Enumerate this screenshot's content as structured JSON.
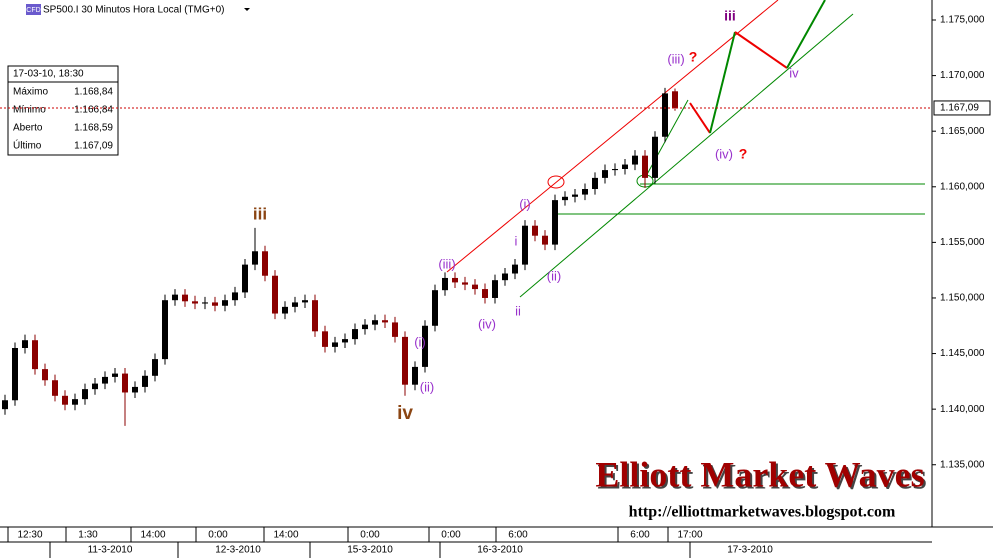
{
  "chart_data": {
    "type": "candlestick",
    "badge": "CFD",
    "title": "SP500.I 30 Minutos Hora Local (TMG+0)",
    "up_color": "#000000",
    "down_color": "#8b0000",
    "open": [
      1140.0,
      1140.8,
      1145.5,
      1146.2,
      1143.6,
      1142.6,
      1141.2,
      1140.4,
      1140.9,
      1141.8,
      1142.3,
      1142.9,
      1143.2,
      1141.5,
      1142.0,
      1143.0,
      1144.5,
      1149.8,
      1150.3,
      1149.7,
      1149.5,
      1149.6,
      1149.3,
      1149.8,
      1150.5,
      1153.0,
      1154.2,
      1152.0,
      1148.6,
      1149.2,
      1149.6,
      1149.8,
      1147.0,
      1145.6,
      1146.0,
      1146.3,
      1147.2,
      1147.6,
      1148.0,
      1147.8,
      1146.5,
      1142.2,
      1143.8,
      1147.5,
      1150.7,
      1151.8,
      1151.4,
      1151.2,
      1150.8,
      1150.0,
      1151.6,
      1152.2,
      1153.0,
      1156.5,
      1155.6,
      1154.8,
      1158.8,
      1159.1,
      1159.3,
      1159.8,
      1160.8,
      1161.5,
      1161.6,
      1162.0,
      1162.8,
      1160.8,
      1164.5,
      1168.59
    ],
    "high": [
      1141.3,
      1146.0,
      1146.7,
      1146.7,
      1144.1,
      1143.1,
      1141.7,
      1141.4,
      1142.3,
      1142.8,
      1143.4,
      1143.7,
      1143.7,
      1142.5,
      1143.5,
      1145.0,
      1150.3,
      1150.8,
      1150.8,
      1150.2,
      1150.1,
      1150.1,
      1150.3,
      1151.0,
      1153.5,
      1156.3,
      1154.7,
      1152.5,
      1149.7,
      1150.1,
      1150.3,
      1150.3,
      1147.5,
      1146.5,
      1146.8,
      1147.7,
      1148.1,
      1148.5,
      1148.5,
      1148.3,
      1147.0,
      1144.3,
      1148.0,
      1151.2,
      1152.3,
      1152.3,
      1151.9,
      1151.7,
      1151.3,
      1152.1,
      1152.7,
      1153.5,
      1157.0,
      1157.0,
      1156.1,
      1159.3,
      1159.6,
      1159.8,
      1160.3,
      1161.3,
      1162.0,
      1162.1,
      1162.5,
      1163.3,
      1163.3,
      1165.0,
      1168.9,
      1168.84
    ],
    "low": [
      1139.5,
      1140.3,
      1145.0,
      1143.1,
      1142.1,
      1140.7,
      1139.9,
      1139.9,
      1140.4,
      1141.3,
      1141.8,
      1142.4,
      1138.5,
      1141.0,
      1141.5,
      1142.5,
      1144.0,
      1149.3,
      1149.2,
      1149.0,
      1149.0,
      1148.8,
      1148.8,
      1149.3,
      1150.0,
      1152.5,
      1151.5,
      1148.1,
      1148.1,
      1148.7,
      1149.1,
      1146.5,
      1145.1,
      1145.1,
      1145.5,
      1145.8,
      1146.7,
      1147.1,
      1147.3,
      1146.0,
      1141.2,
      1141.7,
      1143.3,
      1147.0,
      1150.2,
      1150.9,
      1150.7,
      1150.3,
      1149.5,
      1149.5,
      1151.1,
      1151.7,
      1152.5,
      1155.1,
      1154.3,
      1154.3,
      1158.3,
      1158.6,
      1158.8,
      1159.3,
      1160.3,
      1161.0,
      1161.1,
      1161.5,
      1159.9,
      1160.3,
      1164.0,
      1166.84
    ],
    "close": [
      1140.8,
      1145.5,
      1146.2,
      1143.6,
      1142.6,
      1141.2,
      1140.4,
      1140.9,
      1141.8,
      1142.3,
      1142.9,
      1143.2,
      1141.5,
      1142.0,
      1143.0,
      1144.5,
      1149.8,
      1150.3,
      1149.7,
      1149.5,
      1149.6,
      1149.3,
      1149.8,
      1150.5,
      1153.0,
      1154.2,
      1152.0,
      1148.6,
      1149.2,
      1149.6,
      1149.8,
      1147.0,
      1145.6,
      1146.0,
      1146.3,
      1147.2,
      1147.6,
      1148.0,
      1147.8,
      1146.5,
      1142.2,
      1143.8,
      1147.5,
      1150.7,
      1151.8,
      1151.4,
      1151.2,
      1150.8,
      1150.0,
      1151.6,
      1152.2,
      1153.0,
      1156.5,
      1155.6,
      1154.8,
      1158.8,
      1159.1,
      1159.3,
      1159.8,
      1160.8,
      1161.5,
      1161.6,
      1162.0,
      1162.8,
      1160.8,
      1164.5,
      1168.4,
      1167.09
    ],
    "xlim": [
      -0.5,
      92.7
    ],
    "ylim": [
      1129.4,
      1176.8
    ],
    "yticks": [
      {
        "value": 1135,
        "label": "1.135,000"
      },
      {
        "value": 1140,
        "label": "1.140,000"
      },
      {
        "value": 1145,
        "label": "1.145,000"
      },
      {
        "value": 1150,
        "label": "1.150,000"
      },
      {
        "value": 1155,
        "label": "1.155,000"
      },
      {
        "value": 1160,
        "label": "1.160,000"
      },
      {
        "value": 1165,
        "label": "1.165,000"
      },
      {
        "value": 1170,
        "label": "1.170,000"
      },
      {
        "value": 1175,
        "label": "1.175,000"
      }
    ],
    "xticks": [
      {
        "value": 2.5,
        "label": "12:30"
      },
      {
        "value": 8.3,
        "label": "1:30"
      },
      {
        "value": 14.8,
        "label": "14:00"
      },
      {
        "value": 21.3,
        "label": "0:00"
      },
      {
        "value": 28.1,
        "label": "14:00"
      },
      {
        "value": 36.5,
        "label": "0:00"
      },
      {
        "value": 44.6,
        "label": "0:00"
      },
      {
        "value": 51.3,
        "label": "6:00"
      },
      {
        "value": 63.5,
        "label": "6:00"
      },
      {
        "value": 68.5,
        "label": "17:00"
      }
    ],
    "date_ticks": [
      {
        "value": 10.5,
        "label": "11-3-2010"
      },
      {
        "value": 23.3,
        "label": "12-3-2010"
      },
      {
        "value": 36.5,
        "label": "15-3-2010"
      },
      {
        "value": 49.5,
        "label": "16-3-2010"
      },
      {
        "value": 74.5,
        "label": "17-3-2010"
      }
    ],
    "last_price": {
      "value": 1167.09,
      "label": "1.167,09"
    },
    "info": {
      "datetime": "17-03-10, 18:30",
      "rows": [
        [
          "Máximo",
          "1.168,84"
        ],
        [
          "Mínimo",
          "1.166,84"
        ],
        [
          "Aberto",
          "1.168,59"
        ],
        [
          "Último",
          "1.167,09"
        ]
      ]
    },
    "annotations": [
      "iii",
      "iv",
      "(i)",
      "(ii)",
      "(iii)",
      "(iv)",
      "(i)",
      "i",
      "ii",
      "(ii)",
      "(iii)",
      "?",
      "(iv)",
      "?",
      "iii",
      "iv"
    ],
    "logo": "Elliott Market Waves",
    "url": "http://elliottmarketwaves.blogspot.com"
  }
}
